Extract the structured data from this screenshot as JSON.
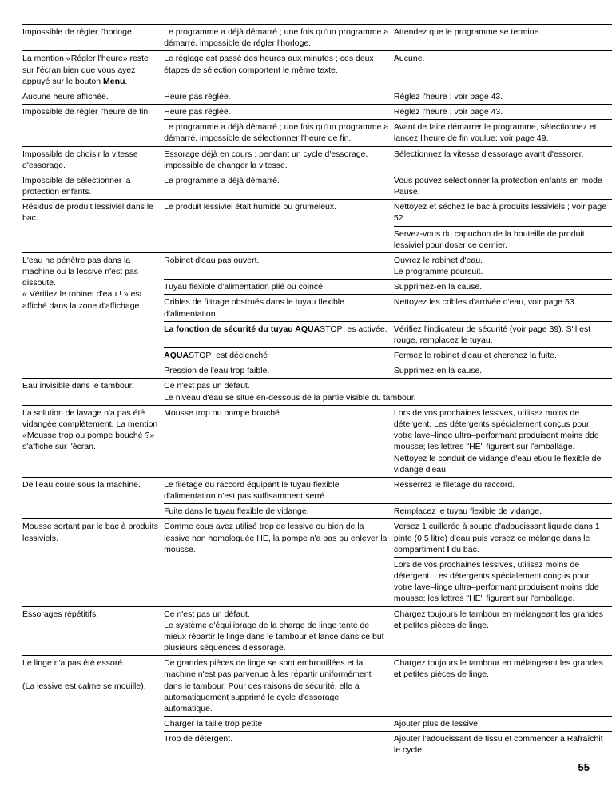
{
  "pageNumber": "55",
  "rows": [
    {
      "c1": "Impossible de régler l'horloge.",
      "c2": "Le programme a déjà démarré ; une fois qu'un programme a démarré, impossible de régler l'horloge.",
      "c3": "Attendez que le programme se termine.",
      "nb1": false,
      "nb2": false,
      "nb3": false
    },
    {
      "c1": "La mention «Régler l'heure» reste sur l'écran bien que vous ayez appuyé sur le bouton <b>Menu</b>.",
      "c2": "Le réglage est passé des heures aux minutes ; ces deux étapes de sélection comportent le même texte.",
      "c3": "Aucune.",
      "nb1": false,
      "nb2": false,
      "nb3": false
    },
    {
      "c1": "Aucune heure affichée.",
      "c2": "Heure pas réglée.",
      "c3": "Réglez l'heure ; voir page 43.",
      "nb1": false,
      "nb2": false,
      "nb3": false
    },
    {
      "c1": "Impossible de régler l'heure de fin.",
      "c2": "Heure pas réglée.",
      "c3": "Réglez l'heure ; voir page 43.",
      "nb1": false,
      "nb2": false,
      "nb3": false
    },
    {
      "c1": "",
      "c2": "Le programme a déjà démarré ; une fois qu'un programme a démarré, impossible de sélectionner l'heure de fin.",
      "c3": "Avant de faire démarrer le programme, sélectionnez et lancez l'heure de fin voulue; voir page 49.",
      "nb1": true,
      "nb2": false,
      "nb3": false
    },
    {
      "c1": "Impossible de choisir la vitesse d'essorage.",
      "c2": "Essorage déjà en cours ; pendant un cycle d'essorage, impossible de changer la vitesse.",
      "c3": "Sélectionnez la vitesse d'essorage avant d'essorer.",
      "nb1": false,
      "nb2": false,
      "nb3": false
    },
    {
      "c1": "Impossible de sélectionner la protection enfants.",
      "c2": "Le programme a déjà démarré.",
      "c3": "Vous pouvez sélectionner la protection enfants en mode Pause.",
      "nb1": false,
      "nb2": false,
      "nb3": false
    },
    {
      "c1": "Résidus de produit lessiviel dans le bac.",
      "c2": "Le produit lessiviel était humide ou grumeleux.",
      "c3": "Nettoyez et séchez le bac à produits lessiviels ; voir page 52.",
      "nb1": false,
      "nb2": false,
      "nb3": false
    },
    {
      "c1": "",
      "c2": "",
      "c3": "Servez-vous du capuchon de la bouteille de produit lessiviel pour doser ce dernier.",
      "nb1": true,
      "nb2": true,
      "nb3": false
    },
    {
      "c1": "L'eau ne pénètre pas dans la machine ou la lessive n'est pas dissoute.<br>« Vérifiez le robinet d'eau ! » est affiché dans la zone d'affichage.",
      "c2": "Robinet d'eau pas ouvert.",
      "c3": "Ouvrez le robinet d'eau.<br>Le programme poursuit.",
      "nb1": false,
      "nb2": false,
      "nb3": false,
      "rs1": 5
    },
    {
      "c1": "",
      "c2": "Tuyau flexible d'alimentation plié ou coincé.",
      "c3": "Supprimez-en la cause.",
      "skip1": true,
      "nb2": false,
      "nb3": false
    },
    {
      "c1": "",
      "c2": "Cribles de filtrage obstrués dans le tuyau flexible d'alimentation.",
      "c3": "Nettoyez les cribles d'arrivée d'eau, voir page 53.",
      "skip1": true,
      "nb2": false,
      "nb3": false
    },
    {
      "c1": "",
      "c2": "<b>La fonction de sécurité du tuyau AQUA</b>STOP&nbsp;&nbsp;es activée.",
      "c3": "Vérifiez l'indicateur de sécurité (voir page 39).  S'il est rouge, remplacez le tuyau.",
      "skip1": true,
      "nb2": false,
      "nb3": false
    },
    {
      "c1": "",
      "c2": "<b>AQUA</b>STOP&nbsp;&nbsp;est déclenché",
      "c3": "Fermez le robinet d'eau et cherchez la fuite.",
      "skip1": true,
      "nb2": false,
      "nb3": false
    },
    {
      "c1": "",
      "c2": "Pression de l'eau trop faible.",
      "c3": "Supprimez-en la cause.",
      "nb1": true,
      "nb2": false,
      "nb3": false
    },
    {
      "c1": "Eau invisible dans le tambour.",
      "c2": "Ce n'est pas un défaut.<br>Le niveau d'eau se situe en-dessous de la partie visible du tambour.",
      "c3": "",
      "nb1": false,
      "nb2": false,
      "nb3": false,
      "cs2": 2
    },
    {
      "c1": "La solution de lavage n'a pas été vidangée complètement. La mention «Mousse trop ou pompe bouché ?» s'affiche sur l'écran.",
      "c2": "Mousse trop ou pompe bouché",
      "c3": "Lors de vos prochaines lessives, utilisez moins de détergent.  Les détergents spécialement conçus pour votre lave–linge ultra–performant produisent moins dde mousse; les lettres \"HE\" figurent sur l'emballage.  Nettoyez le conduit de vidange d'eau et/ou le flexible de vidange d'eau.",
      "nb1": false,
      "nb2": false,
      "nb3": false
    },
    {
      "c1": "De l'eau coule sous la machine.",
      "c2": "Le filetage du raccord équipant le tuyau flexible d'alimentation n'est pas suffisamment serré.",
      "c3": "Resserrez le filetage du raccord.",
      "nb1": false,
      "nb2": false,
      "nb3": false
    },
    {
      "c1": "",
      "c2": "Fuite dans le tuyau flexible de vidange.",
      "c3": "Remplacez le tuyau flexible de vidange.",
      "nb1": true,
      "nb2": false,
      "nb3": false
    },
    {
      "c1": "Mousse sortant par le bac à produits lessiviels.",
      "c2": "Comme cous avez utilisé trop de lessive ou bien de la lessive non homologuée HE, la pompe n'a pas pu enlever la mousse.",
      "c3": "Versez 1 cuillerée à soupe d'adoucissant liquide dans 1 pinte (0,5 litre) d'eau puis versez ce mélange dans le compartiment <b>I</b> du bac.",
      "nb1": false,
      "nb2": false,
      "nb3": false
    },
    {
      "c1": "",
      "c2": "",
      "c3": "Lors de vos prochaines lessives, utilisez moins de détergent.  Les détergents spécialement conçus pour votre lave–linge ultra–performant produisent moins dde mousse; les lettres \"HE\" figurent sur l'emballage.",
      "nb1": true,
      "nb2": true,
      "nb3": false
    },
    {
      "c1": "Essorages répétitifs.",
      "c2": "Ce n'est pas un défaut.<br>Le système d'équilibrage de la charge de linge tente de mieux répartir le linge dans le tambour et lance dans ce but plusieurs séquences d'essorage.",
      "c3": "Chargez toujours le tambour en mélangeant les grandes <b>et</b> petites pièces de linge.",
      "nb1": false,
      "nb2": false,
      "nb3": false
    },
    {
      "c1": "Le linge n'a pas été essoré.<br><br>(La lessive est calme se mouille).",
      "c2": "De grandes pièces de linge se sont embrouillées et la machine n'est pas parvenue à les répartir uniformément dans le tambour. Pour des raisons de sécurité, elle a automatiquement supprimé le cycle d'essorage automatique.",
      "c3": "Chargez toujours le tambour en mélangeant les grandes <b>et</b> petites pièces de linge.",
      "nb1": false,
      "nb2": false,
      "nb3": false
    },
    {
      "c1": "",
      "c2": "Charger la taille trop petite",
      "c3": "Ajouter plus de lessive.",
      "nb1": true,
      "nb2": false,
      "nb3": false
    },
    {
      "c1": "",
      "c2": "Trop de détergent.",
      "c3": "Ajouter l'adoucissant de tissu et commencer à Rafraîchit le cycle.",
      "nb1": true,
      "nb2": false,
      "nb3": false
    }
  ]
}
